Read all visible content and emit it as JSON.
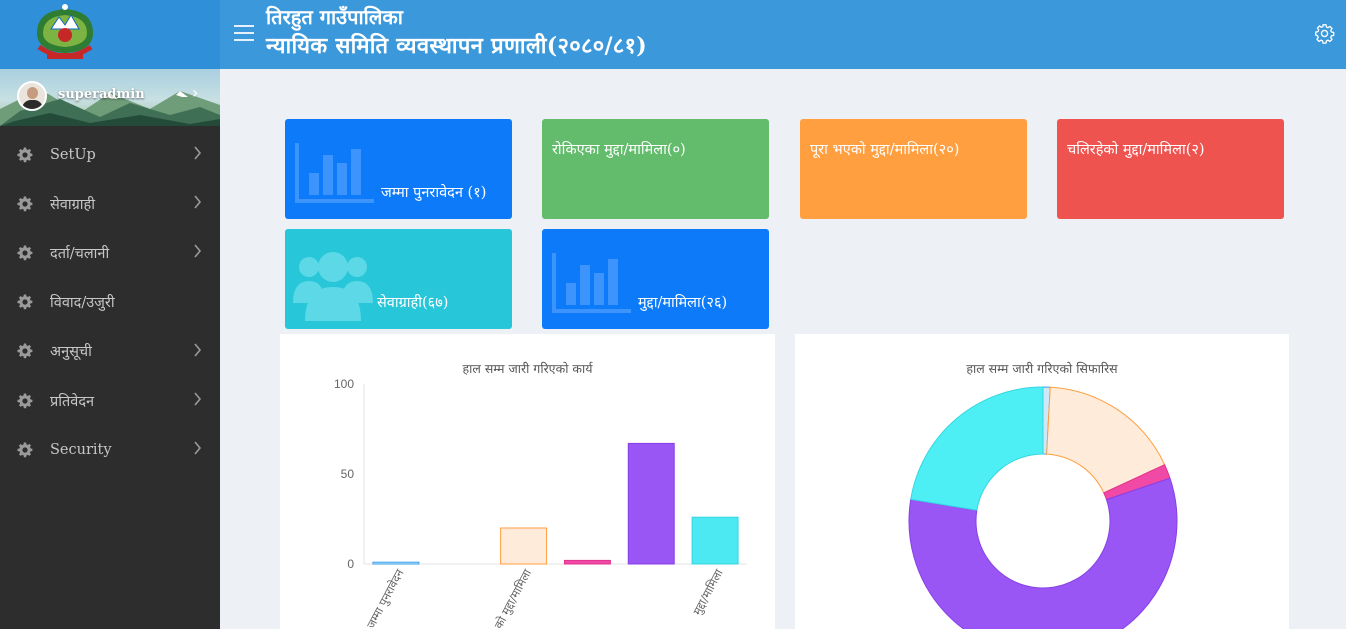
{
  "header": {
    "title_line_1": "तिरहुत गाउँपालिका",
    "title_line_2": "न्यायिक समिति व्यवस्थापन प्रणाली(२०८०/८१)",
    "menu_icon": "hamburger-icon",
    "settings_icon": "gear-icon"
  },
  "brand": {
    "logo_icon": "government-emblem-icon"
  },
  "user": {
    "name": "superadmin"
  },
  "sidebar": {
    "items": [
      {
        "label": "SetUp",
        "icon": "gear-icon",
        "has_chevron": true
      },
      {
        "label": "सेवाग्राही",
        "icon": "gear-icon",
        "has_chevron": true
      },
      {
        "label": "दर्ता/चलानी",
        "icon": "gear-icon",
        "has_chevron": true
      },
      {
        "label": "विवाद/उजुरी",
        "icon": "gear-icon",
        "has_chevron": false
      },
      {
        "label": "अनुसूची",
        "icon": "gear-icon",
        "has_chevron": true
      },
      {
        "label": "प्रतिवेदन",
        "icon": "gear-icon",
        "has_chevron": true
      },
      {
        "label": "Security",
        "icon": "gear-icon",
        "has_chevron": true
      }
    ]
  },
  "cards": [
    {
      "label": "जम्मा पुनरावेदन (१)",
      "color": "#0d7bf9",
      "icon": "bar-chart-icon"
    },
    {
      "label": "रोकिएका मुद्दा/मामिला(०)",
      "color": "#63bc6b",
      "icon": ""
    },
    {
      "label": "पूरा भएको मुद्दा/मामिला(२०)",
      "color": "#ff9f40",
      "icon": ""
    },
    {
      "label": "चलिरहेको मुद्दा/मामिला(२)",
      "color": "#ef5350",
      "icon": ""
    },
    {
      "label": "सेवाग्राही(६७)",
      "color": "#27c6d9",
      "icon": "users-icon"
    },
    {
      "label": "मुद्दा/मामिला(२६)",
      "color": "#0d7bf9",
      "icon": "bar-chart-icon"
    }
  ],
  "chart_data": [
    {
      "type": "bar",
      "title": "हाल सम्म जारी गरिएको कार्य",
      "ylim": [
        0,
        100
      ],
      "y_ticks": [
        0,
        50,
        100
      ],
      "grid": false,
      "x_tick_labels": [
        "जम्मा पुनरावेदन",
        "...को मुद्दा/मामिला",
        "मुद्दा/मामिला"
      ],
      "values": [
        1,
        0,
        20,
        2,
        67,
        26
      ],
      "colors": [
        {
          "fill": "#cfe8f7",
          "stroke": "#36a2eb"
        },
        {
          "fill": "#d9f0de",
          "stroke": "#63bc6b"
        },
        {
          "fill": "#ffebd9",
          "stroke": "#ff9f40"
        },
        {
          "fill": "#f04aa6",
          "stroke": "#e0338f"
        },
        {
          "fill": "#9a55f5",
          "stroke": "#8740e6"
        },
        {
          "fill": "#4de9f2",
          "stroke": "#35d6e0"
        }
      ]
    },
    {
      "type": "pie",
      "title": "हाल सम्म जारी गरिएको सिफारिस",
      "hole_ratio": 0.5,
      "values": [
        1,
        20,
        2,
        67,
        26
      ],
      "colors": [
        {
          "fill": "#cfe8f7",
          "stroke": "#36a2eb"
        },
        {
          "fill": "#ffebd9",
          "stroke": "#ff9f40"
        },
        {
          "fill": "#f04aa6",
          "stroke": "#e0338f"
        },
        {
          "fill": "#9a55f5",
          "stroke": "#8740e6"
        },
        {
          "fill": "#4eeef5",
          "stroke": "#35d6e0"
        }
      ]
    }
  ]
}
